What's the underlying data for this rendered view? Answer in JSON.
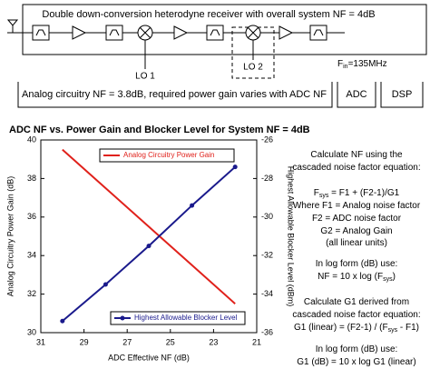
{
  "diagram": {
    "title": "Double down-conversion heterodyne receiver with overall system NF = 4dB",
    "lo1": "LO 1",
    "lo2": "LO 2",
    "fin": [
      "F",
      {
        "sub": "in"
      },
      "=135MHz"
    ],
    "analog": "Analog circuitry NF = 3.8dB, required power gain varies with ADC NF",
    "adc": "ADC",
    "dsp": "DSP"
  },
  "chart_data": {
    "type": "line",
    "title": "ADC NF vs. Power Gain and Blocker Level for System NF = 4dB",
    "x_label": "ADC Effective NF (dB)",
    "y_label": "Analog Circuitry Power Gain (dB)",
    "y2_label": "Highest Allowable Blocker Level (dBm)",
    "x": [
      30,
      28,
      26,
      24,
      22
    ],
    "series": [
      {
        "name": "Analog Circuitry Power Gain",
        "color": "#e0211b",
        "values": [
          39.5,
          37.5,
          35.5,
          33.5,
          31.5
        ]
      },
      {
        "name": "Highest Allowable Blocker Level",
        "color": "#1a1a8c",
        "axis": "y2",
        "markers": true,
        "values": [
          -35.4,
          -33.5,
          -31.5,
          -29.4,
          -27.4
        ]
      }
    ],
    "xlim": [
      31,
      21
    ],
    "xticks": [
      31,
      29,
      27,
      25,
      23,
      21
    ],
    "ylim": [
      30,
      40
    ],
    "yticks": [
      30,
      32,
      34,
      36,
      38,
      40
    ],
    "y2lim": [
      -36,
      -26
    ],
    "y2ticks": [
      -26,
      -28,
      -30,
      -32,
      -34,
      -36
    ]
  },
  "notes": [
    [
      "Calculate NF using the"
    ],
    [
      "cascaded noise factor equation:"
    ],
    [
      "F",
      {
        "sub": "sys"
      },
      " = F1 + (F2-1)/G1"
    ],
    [
      "Where F1 = Analog noise factor"
    ],
    [
      "F2 = ADC noise factor"
    ],
    [
      "G2 = Analog Gain"
    ],
    [
      "(all linear units)"
    ],
    [
      "In log form (dB) use:"
    ],
    [
      "NF = 10 x log (F",
      {
        "sub": "sys"
      },
      ")"
    ],
    [
      "Calculate G1 derived from"
    ],
    [
      "cascaded noise factor equation:"
    ],
    [
      "G1 (linear) = (F2-1) / (F",
      {
        "sub": "sys"
      },
      " - F1)"
    ],
    [
      "In log form (dB) use:"
    ],
    [
      "G1 (dB) = 10 x log G1 (linear)"
    ]
  ]
}
